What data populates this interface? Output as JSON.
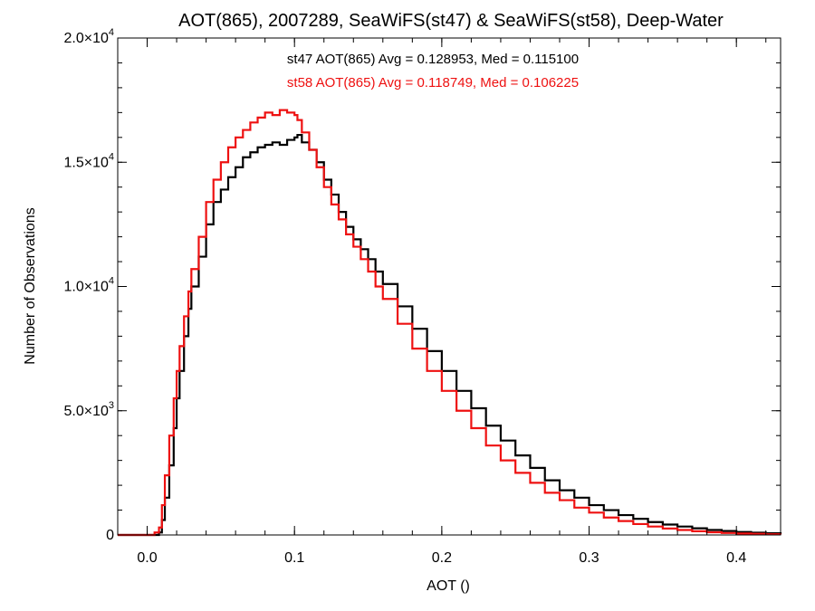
{
  "chart_data": {
    "type": "line",
    "title": "AOT(865), 2007289, SeaWiFS(st47) & SeaWiFS(st58), Deep-Water",
    "xlabel": "AOT ()",
    "ylabel": "Number of Observations",
    "xlim": [
      -0.02,
      0.43
    ],
    "ylim": [
      0,
      20000
    ],
    "x_ticks": [
      0.0,
      0.1,
      0.2,
      0.3,
      0.4
    ],
    "x_tick_labels": [
      "0.0",
      "0.1",
      "0.2",
      "0.3",
      "0.4"
    ],
    "y_ticks": [
      0,
      5000,
      10000,
      15000,
      20000
    ],
    "y_tick_labels": [
      {
        "mantissa": "0",
        "exponent": ""
      },
      {
        "mantissa": "5.0×10",
        "exponent": "3"
      },
      {
        "mantissa": "1.0×10",
        "exponent": "4"
      },
      {
        "mantissa": "1.5×10",
        "exponent": "4"
      },
      {
        "mantissa": "2.0×10",
        "exponent": "4"
      }
    ],
    "grid": false,
    "legend_position": "top-center",
    "series": [
      {
        "name": "st47",
        "label": "st47 AOT(865) Avg = 0.128953, Med = 0.115100",
        "color": "#000000",
        "step": true,
        "x": [
          -0.02,
          0.0,
          0.005,
          0.008,
          0.01,
          0.012,
          0.015,
          0.018,
          0.02,
          0.022,
          0.025,
          0.028,
          0.03,
          0.035,
          0.04,
          0.045,
          0.05,
          0.055,
          0.06,
          0.065,
          0.07,
          0.075,
          0.08,
          0.085,
          0.09,
          0.095,
          0.1,
          0.102,
          0.105,
          0.11,
          0.115,
          0.12,
          0.125,
          0.13,
          0.135,
          0.14,
          0.145,
          0.15,
          0.155,
          0.16,
          0.17,
          0.18,
          0.19,
          0.2,
          0.21,
          0.22,
          0.23,
          0.24,
          0.25,
          0.26,
          0.27,
          0.28,
          0.29,
          0.3,
          0.31,
          0.32,
          0.33,
          0.34,
          0.35,
          0.36,
          0.37,
          0.38,
          0.39,
          0.4,
          0.41,
          0.42,
          0.43
        ],
        "y": [
          0,
          0,
          0,
          100,
          600,
          1500,
          2800,
          4300,
          5500,
          6600,
          8000,
          9100,
          10000,
          11200,
          12500,
          13400,
          13900,
          14400,
          14800,
          15200,
          15400,
          15600,
          15700,
          15800,
          15700,
          15900,
          16000,
          16100,
          15800,
          15500,
          15000,
          14300,
          13700,
          13000,
          12400,
          11900,
          11500,
          11100,
          10600,
          10100,
          9200,
          8300,
          7400,
          6600,
          5800,
          5100,
          4400,
          3800,
          3200,
          2700,
          2200,
          1800,
          1500,
          1200,
          1000,
          800,
          650,
          520,
          420,
          340,
          270,
          200,
          160,
          120,
          90,
          70,
          50
        ]
      },
      {
        "name": "st58",
        "label": "st58 AOT(865) Avg = 0.118749, Med = 0.106225",
        "color": "#ee1111",
        "step": true,
        "x": [
          -0.02,
          0.0,
          0.005,
          0.008,
          0.01,
          0.012,
          0.015,
          0.018,
          0.02,
          0.022,
          0.025,
          0.028,
          0.03,
          0.035,
          0.04,
          0.045,
          0.05,
          0.055,
          0.06,
          0.065,
          0.07,
          0.075,
          0.08,
          0.085,
          0.09,
          0.095,
          0.1,
          0.102,
          0.105,
          0.11,
          0.115,
          0.12,
          0.125,
          0.13,
          0.135,
          0.14,
          0.145,
          0.15,
          0.155,
          0.16,
          0.17,
          0.18,
          0.19,
          0.2,
          0.21,
          0.22,
          0.23,
          0.24,
          0.25,
          0.26,
          0.27,
          0.28,
          0.29,
          0.3,
          0.31,
          0.32,
          0.33,
          0.34,
          0.35,
          0.36,
          0.37,
          0.38,
          0.39,
          0.4,
          0.41,
          0.42,
          0.43
        ],
        "y": [
          0,
          0,
          100,
          300,
          1200,
          2400,
          4000,
          5500,
          6600,
          7600,
          8800,
          9800,
          10700,
          12000,
          13400,
          14300,
          15000,
          15600,
          16000,
          16300,
          16600,
          16800,
          17000,
          16900,
          17100,
          17000,
          16900,
          16700,
          16200,
          15500,
          14800,
          14000,
          13300,
          12700,
          12100,
          11600,
          11100,
          10600,
          10000,
          9500,
          8500,
          7500,
          6600,
          5800,
          5000,
          4300,
          3600,
          3000,
          2500,
          2100,
          1700,
          1400,
          1100,
          900,
          700,
          560,
          440,
          340,
          260,
          200,
          150,
          110,
          80,
          60,
          45,
          30,
          20
        ]
      }
    ]
  }
}
